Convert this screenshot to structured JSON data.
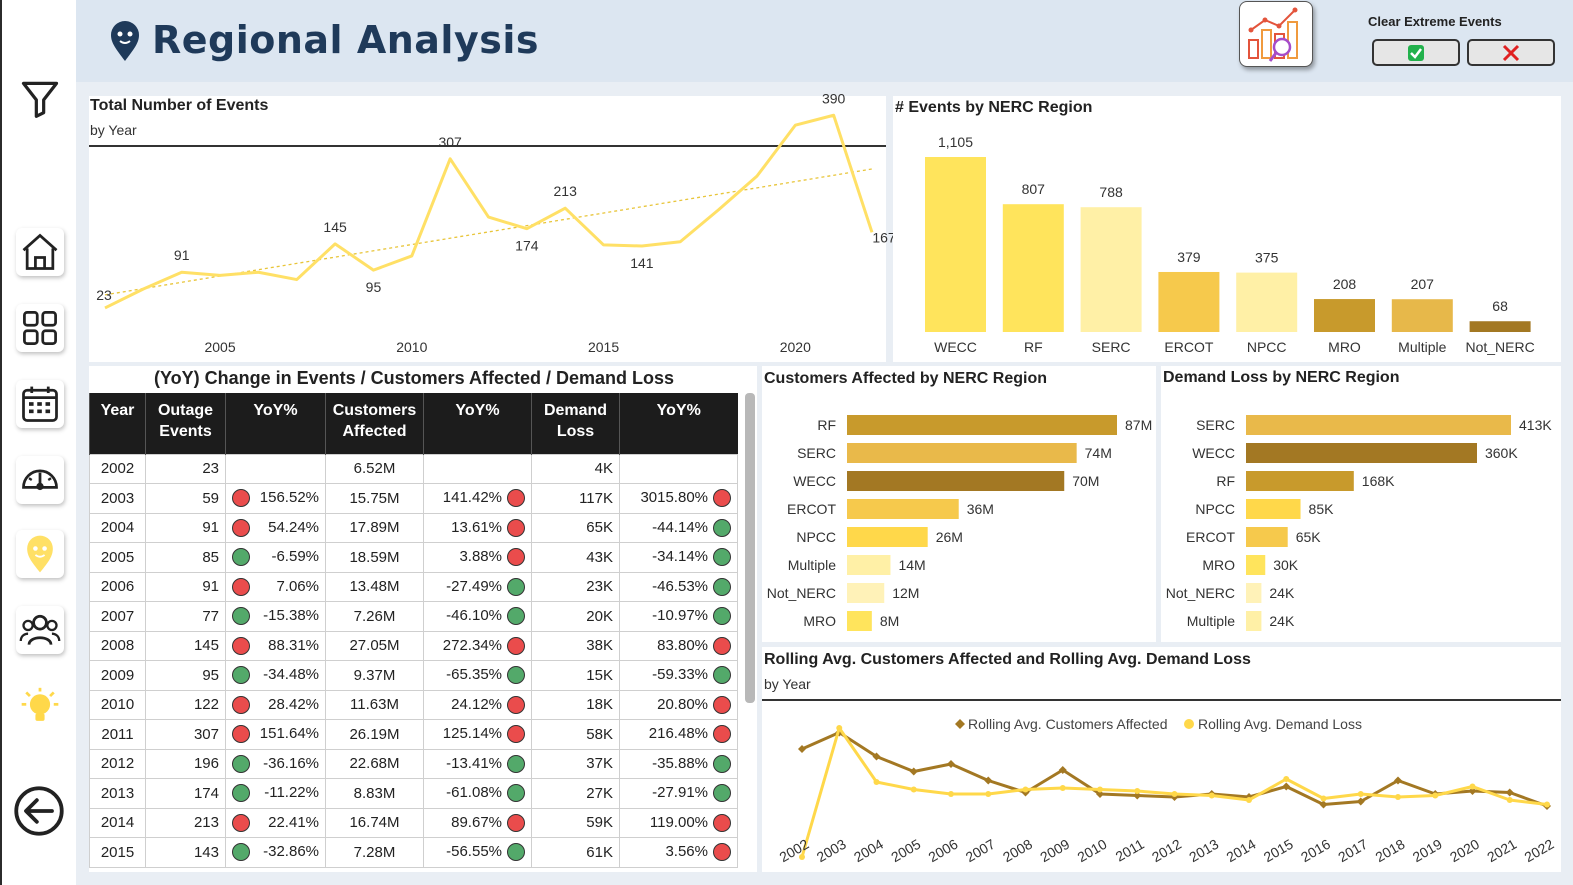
{
  "header": {
    "title": "Regional Analysis",
    "clear_label": "Clear Extreme Events"
  },
  "sidebar": {
    "icons": [
      "filter-icon",
      "home-icon",
      "grid-icon",
      "calendar-icon",
      "gauge-icon",
      "map-pin-icon",
      "people-icon",
      "lightbulb-icon",
      "back-icon"
    ]
  },
  "colors": {
    "accent": "#ffe066",
    "dark_gold": "#c89a2c",
    "brown": "#a37823",
    "header_bg": "#dce6f1",
    "title": "#1f3a5a"
  },
  "chart_data": [
    {
      "id": "events_by_year",
      "type": "line",
      "title": "Total Number of Events",
      "subtitle": "by Year",
      "x": [
        2002,
        2003,
        2004,
        2005,
        2006,
        2007,
        2008,
        2009,
        2010,
        2011,
        2012,
        2013,
        2014,
        2015,
        2016,
        2017,
        2018,
        2019,
        2020,
        2021,
        2022
      ],
      "values": [
        23,
        59,
        91,
        85,
        91,
        77,
        145,
        95,
        122,
        307,
        196,
        174,
        213,
        143,
        141,
        149,
        210,
        274,
        371,
        390,
        167
      ],
      "labels_shown": {
        "2002": "23",
        "2004": "91",
        "2008": "145",
        "2009": "95",
        "2011": "307",
        "2013": "174",
        "2014": "213",
        "2016": "141",
        "2021": "390",
        "2022": "167"
      },
      "x_ticks": [
        "2005",
        "2010",
        "2015",
        "2020"
      ],
      "trendline": true
    },
    {
      "id": "events_by_region",
      "type": "bar",
      "title": "# Events by NERC Region",
      "categories": [
        "WECC",
        "RF",
        "SERC",
        "ERCOT",
        "NPCC",
        "MRO",
        "Multiple",
        "Not_NERC"
      ],
      "values": [
        1105,
        807,
        788,
        379,
        375,
        208,
        207,
        68
      ],
      "value_labels": [
        "1,105",
        "807",
        "788",
        "379",
        "375",
        "208",
        "207",
        "68"
      ],
      "colors": [
        "#ffe45c",
        "#ffe45c",
        "#fff0a6",
        "#f6c94c",
        "#fff0a6",
        "#c89a2c",
        "#e7b84a",
        "#a37823"
      ]
    },
    {
      "id": "customers_by_region",
      "type": "bar",
      "orientation": "horizontal",
      "title": "Customers Affected by NERC Region",
      "categories": [
        "RF",
        "SERC",
        "WECC",
        "ERCOT",
        "NPCC",
        "Multiple",
        "Not_NERC",
        "MRO"
      ],
      "values": [
        87,
        74,
        70,
        36,
        26,
        14,
        12,
        8
      ],
      "value_labels": [
        "87M",
        "74M",
        "70M",
        "36M",
        "26M",
        "14M",
        "12M",
        "8M"
      ],
      "colors": [
        "#c89a2c",
        "#e9b94a",
        "#a37823",
        "#f6c94c",
        "#ffd84a",
        "#fff0a6",
        "#fff2b8",
        "#ffe45c"
      ]
    },
    {
      "id": "demand_by_region",
      "type": "bar",
      "orientation": "horizontal",
      "title": "Demand Loss by NERC Region",
      "categories": [
        "SERC",
        "WECC",
        "RF",
        "NPCC",
        "ERCOT",
        "MRO",
        "Not_NERC",
        "Multiple"
      ],
      "values": [
        413,
        360,
        168,
        85,
        65,
        30,
        24,
        24
      ],
      "value_labels": [
        "413K",
        "360K",
        "168K",
        "85K",
        "65K",
        "30K",
        "24K",
        "24K"
      ],
      "colors": [
        "#e9b94a",
        "#a37823",
        "#c89a2c",
        "#ffd84a",
        "#f6c94c",
        "#ffe45c",
        "#fff2b8",
        "#fff0a6"
      ]
    },
    {
      "id": "rolling_avg",
      "type": "line",
      "title": "Rolling Avg. Customers Affected and Rolling Avg. Demand Loss",
      "subtitle": "by Year",
      "x": [
        "2002",
        "2003",
        "2004",
        "2005",
        "2006",
        "2007",
        "2008",
        "2009",
        "2010",
        "2011",
        "2012",
        "2013",
        "2014",
        "2015",
        "2016",
        "2017",
        "2018",
        "2019",
        "2020",
        "2021",
        "2022"
      ],
      "series": [
        {
          "name": "Rolling Avg. Customers Affected",
          "color": "#a37823",
          "values": [
            68,
            79,
            63,
            53,
            58,
            47,
            39,
            54,
            38,
            37,
            36,
            38,
            36,
            43,
            31,
            33,
            47,
            38,
            40,
            39,
            30
          ]
        },
        {
          "name": "Rolling Avg. Demand Loss",
          "color": "#ffd84a",
          "values": [
            -4,
            82,
            46,
            41,
            38,
            38,
            41,
            42,
            41,
            40,
            38,
            37,
            34,
            48,
            35,
            38,
            36,
            37,
            43,
            34,
            31
          ]
        }
      ]
    }
  ],
  "yoy_table": {
    "title": "(YoY) Change in Events / Customers Affected / Demand Loss",
    "headers": [
      "Year",
      "Outage Events",
      "YoY%",
      "Customers Affected",
      "YoY%",
      "Demand Loss",
      "YoY%"
    ],
    "rows": [
      [
        "2002",
        "23",
        "",
        "6.52M",
        "",
        "4K",
        "",
        ""
      ],
      [
        "2003",
        "59",
        "156.52%",
        "15.75M",
        "141.42%",
        "117K",
        "3015.80%",
        "r r r"
      ],
      [
        "2004",
        "91",
        "54.24%",
        "17.89M",
        "13.61%",
        "65K",
        "-44.14%",
        "r r g"
      ],
      [
        "2005",
        "85",
        "-6.59%",
        "18.59M",
        "3.88%",
        "43K",
        "-34.14%",
        "g r g"
      ],
      [
        "2006",
        "91",
        "7.06%",
        "13.48M",
        "-27.49%",
        "23K",
        "-46.53%",
        "r g g"
      ],
      [
        "2007",
        "77",
        "-15.38%",
        "7.26M",
        "-46.10%",
        "20K",
        "-10.97%",
        "g g g"
      ],
      [
        "2008",
        "145",
        "88.31%",
        "27.05M",
        "272.34%",
        "38K",
        "83.80%",
        "r r r"
      ],
      [
        "2009",
        "95",
        "-34.48%",
        "9.37M",
        "-65.35%",
        "15K",
        "-59.33%",
        "g g g"
      ],
      [
        "2010",
        "122",
        "28.42%",
        "11.63M",
        "24.12%",
        "18K",
        "20.80%",
        "r r r"
      ],
      [
        "2011",
        "307",
        "151.64%",
        "26.19M",
        "125.14%",
        "58K",
        "216.48%",
        "r r r"
      ],
      [
        "2012",
        "196",
        "-36.16%",
        "22.68M",
        "-13.41%",
        "37K",
        "-35.88%",
        "g g g"
      ],
      [
        "2013",
        "174",
        "-11.22%",
        "8.83M",
        "-61.08%",
        "27K",
        "-27.91%",
        "g g g"
      ],
      [
        "2014",
        "213",
        "22.41%",
        "16.74M",
        "89.67%",
        "59K",
        "119.00%",
        "r r r"
      ],
      [
        "2015",
        "143",
        "-32.86%",
        "7.28M",
        "-56.55%",
        "61K",
        "3.56%",
        "g g r"
      ]
    ]
  }
}
